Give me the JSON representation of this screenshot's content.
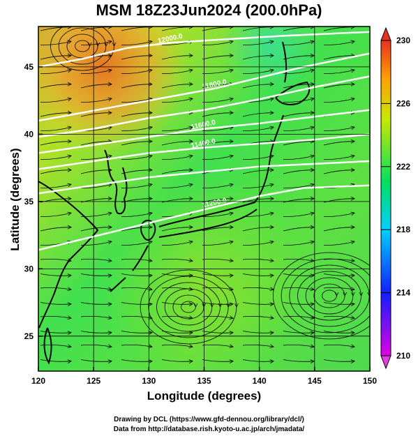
{
  "chart_data": {
    "type": "map",
    "title": "MSM 18Z23Jun2024 (200.0hPa)",
    "xlabel": "Longitude (degrees)",
    "ylabel": "Latitude  (degrees)",
    "xlim": [
      120,
      150
    ],
    "ylim": [
      22.4,
      48
    ],
    "x_ticks": [
      120,
      125,
      130,
      135,
      140,
      145,
      150
    ],
    "y_ticks": [
      25,
      30,
      35,
      40,
      45
    ],
    "colorbar": {
      "min": 210,
      "max": 230,
      "ticks": [
        210,
        214,
        218,
        222,
        226,
        230
      ],
      "colors": [
        "#e000e0",
        "#1020ff",
        "#00d0ff",
        "#00e060",
        "#c8e800",
        "#ffa000",
        "#e83020"
      ]
    },
    "contours": [
      {
        "label": "12000.0",
        "points": [
          [
            120,
            45.0
          ],
          [
            124,
            45.6
          ],
          [
            128,
            46.4
          ],
          [
            132,
            46.8
          ],
          [
            136,
            47.0
          ],
          [
            142,
            47.3
          ],
          [
            150,
            47.6
          ]
        ]
      },
      {
        "label": "11800.0",
        "points": [
          [
            120,
            41.0
          ],
          [
            124,
            41.6
          ],
          [
            128,
            42.2
          ],
          [
            132,
            42.8
          ],
          [
            136,
            43.4
          ],
          [
            140,
            44.2
          ],
          [
            144,
            45.0
          ],
          [
            150,
            46.0
          ]
        ]
      },
      {
        "label": "",
        "points": [
          [
            120,
            39.8
          ],
          [
            125,
            40.4
          ],
          [
            130,
            41.2
          ],
          [
            135,
            41.8
          ],
          [
            140,
            42.6
          ],
          [
            145,
            43.5
          ],
          [
            150,
            44.3
          ]
        ]
      },
      {
        "label": "11600.0",
        "points": [
          [
            120,
            38.6
          ],
          [
            125,
            39.2
          ],
          [
            130,
            39.8
          ],
          [
            135,
            40.4
          ],
          [
            140,
            40.8
          ],
          [
            145,
            41.3
          ],
          [
            150,
            41.8
          ]
        ]
      },
      {
        "label": "11400.0",
        "points": [
          [
            120,
            37.4
          ],
          [
            125,
            38.0
          ],
          [
            130,
            38.6
          ],
          [
            135,
            39.0
          ],
          [
            140,
            39.3
          ],
          [
            145,
            39.6
          ],
          [
            150,
            40.0
          ]
        ]
      },
      {
        "label": "",
        "points": [
          [
            120,
            35.6
          ],
          [
            125,
            36.2
          ],
          [
            130,
            36.8
          ],
          [
            135,
            37.2
          ],
          [
            140,
            37.6
          ],
          [
            145,
            37.8
          ],
          [
            150,
            38.0
          ]
        ]
      },
      {
        "label": "11200.0",
        "points": [
          [
            120,
            31.4
          ],
          [
            124,
            32.2
          ],
          [
            128,
            33.0
          ],
          [
            132,
            33.8
          ],
          [
            136,
            34.6
          ],
          [
            140,
            35.4
          ],
          [
            144,
            36.0
          ],
          [
            150,
            36.2
          ]
        ]
      }
    ]
  },
  "footer": {
    "line1": "Drawing by DCL (https://www.gfd-dennou.org/library/dcl/)",
    "line2": "Data from http://database.rish.kyoto-u.ac.jp/arch/jmadata/"
  }
}
